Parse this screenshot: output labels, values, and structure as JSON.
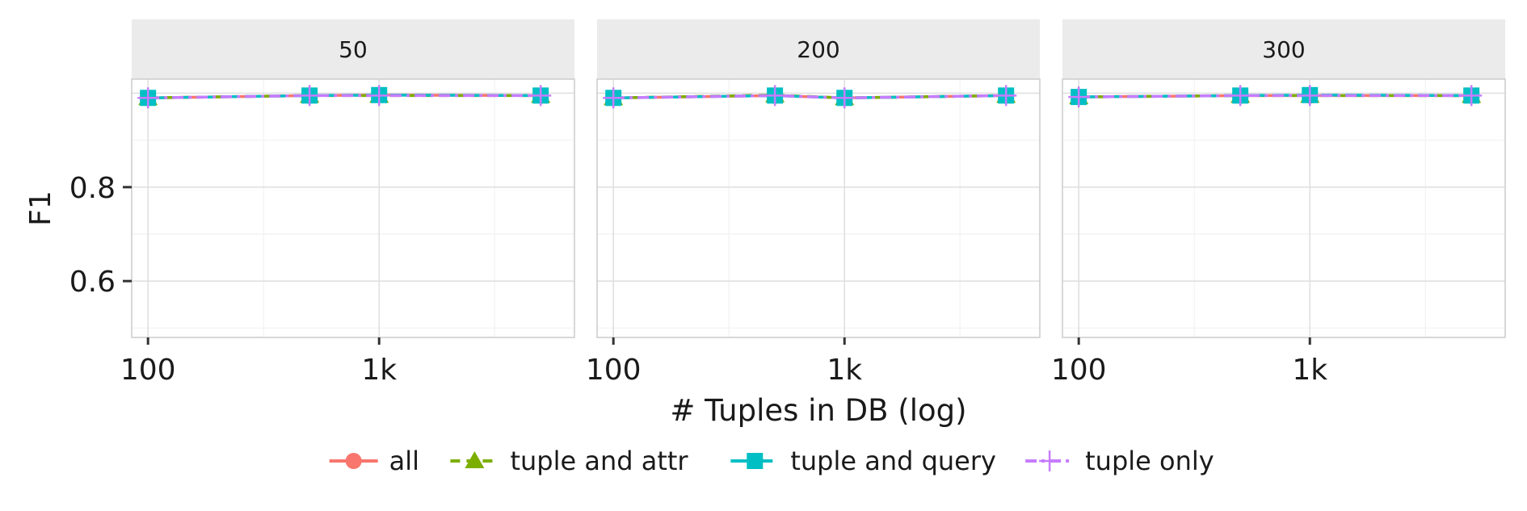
{
  "chart_data": {
    "type": "line",
    "facet_label": "",
    "ylabel": "F1",
    "xlabel": "# Tuples in DB (log)",
    "x_scale": "log10",
    "xlim": [
      85,
      7000
    ],
    "ylim": [
      0.48,
      1.03
    ],
    "yticks": [
      0.6,
      0.8
    ],
    "ytick_labels": [
      "0.6",
      "0.8"
    ],
    "xticks": [
      100,
      1000
    ],
    "xtick_labels": [
      "100",
      "1k"
    ],
    "grid": true,
    "legend_position": "bottom",
    "x": [
      100,
      500,
      1000,
      5000
    ],
    "panels": [
      {
        "label": "50",
        "series": [
          {
            "name": "all",
            "values": [
              0.99,
              0.995,
              0.996,
              0.995
            ]
          },
          {
            "name": "tuple and attr",
            "values": [
              0.99,
              0.995,
              0.995,
              0.995
            ]
          },
          {
            "name": "tuple and query",
            "values": [
              0.99,
              0.995,
              0.996,
              0.995
            ]
          },
          {
            "name": "tuple only",
            "values": [
              0.99,
              0.995,
              0.995,
              0.995
            ]
          }
        ]
      },
      {
        "label": "200",
        "series": [
          {
            "name": "all",
            "values": [
              0.99,
              0.995,
              0.99,
              0.995
            ]
          },
          {
            "name": "tuple and attr",
            "values": [
              0.99,
              0.996,
              0.99,
              0.995
            ]
          },
          {
            "name": "tuple and query",
            "values": [
              0.99,
              0.995,
              0.99,
              0.995
            ]
          },
          {
            "name": "tuple only",
            "values": [
              0.99,
              0.995,
              0.99,
              0.995
            ]
          }
        ]
      },
      {
        "label": "300",
        "series": [
          {
            "name": "all",
            "values": [
              0.992,
              0.995,
              0.995,
              0.995
            ]
          },
          {
            "name": "tuple and attr",
            "values": [
              0.992,
              0.995,
              0.995,
              0.995
            ]
          },
          {
            "name": "tuple and query",
            "values": [
              0.992,
              0.995,
              0.996,
              0.995
            ]
          },
          {
            "name": "tuple only",
            "values": [
              0.992,
              0.995,
              0.995,
              0.995
            ]
          }
        ]
      }
    ],
    "legend": [
      {
        "name": "all",
        "color": "#F8766D",
        "marker": "circle",
        "dash": "solid"
      },
      {
        "name": "tuple and attr",
        "color": "#7CAE00",
        "marker": "triangle",
        "dash": "dashed"
      },
      {
        "name": "tuple and query",
        "color": "#00BFC4",
        "marker": "square",
        "dash": "longdash"
      },
      {
        "name": "tuple only",
        "color": "#C77CFF",
        "marker": "plus",
        "dash": "twodash"
      }
    ]
  }
}
